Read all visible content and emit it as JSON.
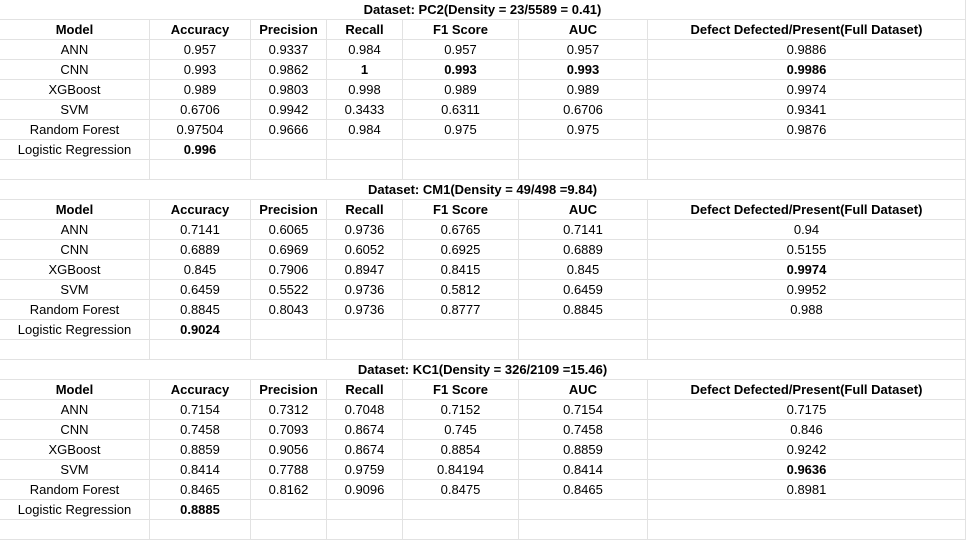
{
  "sections": [
    {
      "title": "Dataset: PC2(Density = 23/5589 = 0.41)",
      "headers": [
        "Model",
        "Accuracy",
        "Precision",
        "Recall",
        "F1 Score",
        "AUC",
        "Defect Defected/Present(Full Dataset)"
      ],
      "rows": [
        [
          "ANN",
          "0.957",
          "0.9337",
          "0.984",
          "0.957",
          "0.957",
          "0.9886"
        ],
        [
          "CNN",
          "0.993",
          "0.9862",
          "1",
          "0.993",
          "0.993",
          "0.9986"
        ],
        [
          "XGBoost",
          "0.989",
          "0.9803",
          "0.998",
          "0.989",
          "0.989",
          "0.9974"
        ],
        [
          "SVM",
          "0.6706",
          "0.9942",
          "0.3433",
          "0.6311",
          "0.6706",
          "0.9341"
        ],
        [
          "Random Forest",
          "0.97504",
          "0.9666",
          "0.984",
          "0.975",
          "0.975",
          "0.9876"
        ],
        [
          "Logistic Regression",
          "0.996",
          "",
          "",
          "",
          "",
          ""
        ]
      ],
      "bold": [
        [
          1,
          3
        ],
        [
          1,
          4
        ],
        [
          1,
          5
        ],
        [
          1,
          6
        ],
        [
          5,
          1
        ]
      ]
    },
    {
      "title": "Dataset: CM1(Density = 49/498 =9.84)",
      "headers": [
        "Model",
        "Accuracy",
        "Precision",
        "Recall",
        "F1 Score",
        "AUC",
        "Defect Defected/Present(Full Dataset)"
      ],
      "rows": [
        [
          "ANN",
          "0.7141",
          "0.6065",
          "0.9736",
          "0.6765",
          "0.7141",
          "0.94"
        ],
        [
          "CNN",
          "0.6889",
          "0.6969",
          "0.6052",
          "0.6925",
          "0.6889",
          "0.5155"
        ],
        [
          "XGBoost",
          "0.845",
          "0.7906",
          "0.8947",
          "0.8415",
          "0.845",
          "0.9974"
        ],
        [
          "SVM",
          "0.6459",
          "0.5522",
          "0.9736",
          "0.5812",
          "0.6459",
          "0.9952"
        ],
        [
          "Random Forest",
          "0.8845",
          "0.8043",
          "0.9736",
          "0.8777",
          "0.8845",
          "0.988"
        ],
        [
          "Logistic Regression",
          "0.9024",
          "",
          "",
          "",
          "",
          ""
        ]
      ],
      "bold": [
        [
          2,
          6
        ],
        [
          5,
          1
        ]
      ]
    },
    {
      "title": "Dataset: KC1(Density = 326/2109 =15.46)",
      "headers": [
        "Model",
        "Accuracy",
        "Precision",
        "Recall",
        "F1 Score",
        "AUC",
        "Defect Defected/Present(Full Dataset)"
      ],
      "rows": [
        [
          "ANN",
          "0.7154",
          "0.7312",
          "0.7048",
          "0.7152",
          "0.7154",
          "0.7175"
        ],
        [
          "CNN",
          "0.7458",
          "0.7093",
          "0.8674",
          "0.745",
          "0.7458",
          "0.846"
        ],
        [
          "XGBoost",
          "0.8859",
          "0.9056",
          "0.8674",
          "0.8854",
          "0.8859",
          "0.9242"
        ],
        [
          "SVM",
          "0.8414",
          "0.7788",
          "0.9759",
          "0.84194",
          "0.8414",
          "0.9636"
        ],
        [
          "Random Forest",
          "0.8465",
          "0.8162",
          "0.9096",
          "0.8475",
          "0.8465",
          "0.8981"
        ],
        [
          "Logistic Regression",
          "0.8885",
          "",
          "",
          "",
          "",
          ""
        ]
      ],
      "bold": [
        [
          3,
          6
        ],
        [
          5,
          1
        ]
      ]
    }
  ]
}
